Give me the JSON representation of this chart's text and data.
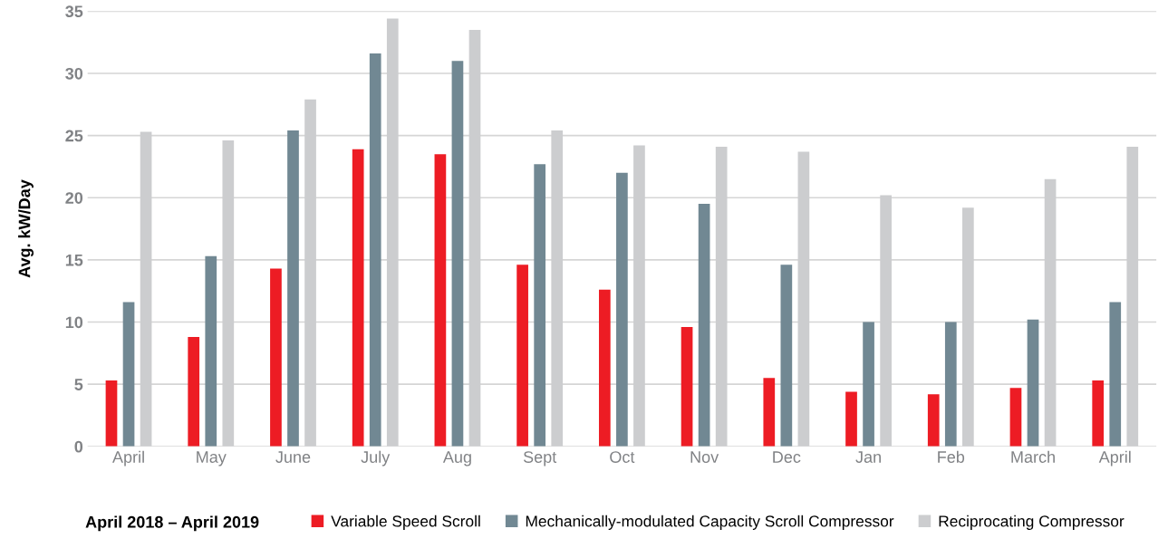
{
  "chart_data": {
    "type": "bar",
    "ylabel": "Avg. kW/Day",
    "legend_title": "April 2018 – April 2019",
    "categories": [
      "April",
      "May",
      "June",
      "July",
      "Aug",
      "Sept",
      "Oct",
      "Nov",
      "Dec",
      "Jan",
      "Feb",
      "March",
      "April"
    ],
    "series": [
      {
        "name": "Variable Speed Scroll",
        "color": "#ed1c24",
        "values": [
          5.3,
          8.8,
          14.3,
          23.9,
          23.5,
          14.6,
          12.6,
          9.6,
          5.5,
          4.4,
          4.2,
          4.7,
          5.3
        ]
      },
      {
        "name": "Mechanically-modulated Capacity Scroll Compressor",
        "color": "#718893",
        "values": [
          11.6,
          15.3,
          25.4,
          31.6,
          31.0,
          22.7,
          22.0,
          19.5,
          14.6,
          10.0,
          10.0,
          10.2,
          11.6
        ]
      },
      {
        "name": "Reciprocating Compressor",
        "color": "#cccdcf",
        "values": [
          25.3,
          24.6,
          27.9,
          34.4,
          33.5,
          25.4,
          24.2,
          24.1,
          23.7,
          20.2,
          19.2,
          21.5,
          24.1
        ]
      }
    ],
    "ylim": [
      0,
      35
    ],
    "yticks": [
      0,
      5,
      10,
      15,
      20,
      25,
      30,
      35
    ],
    "grid": "y",
    "legend": "bottom"
  }
}
